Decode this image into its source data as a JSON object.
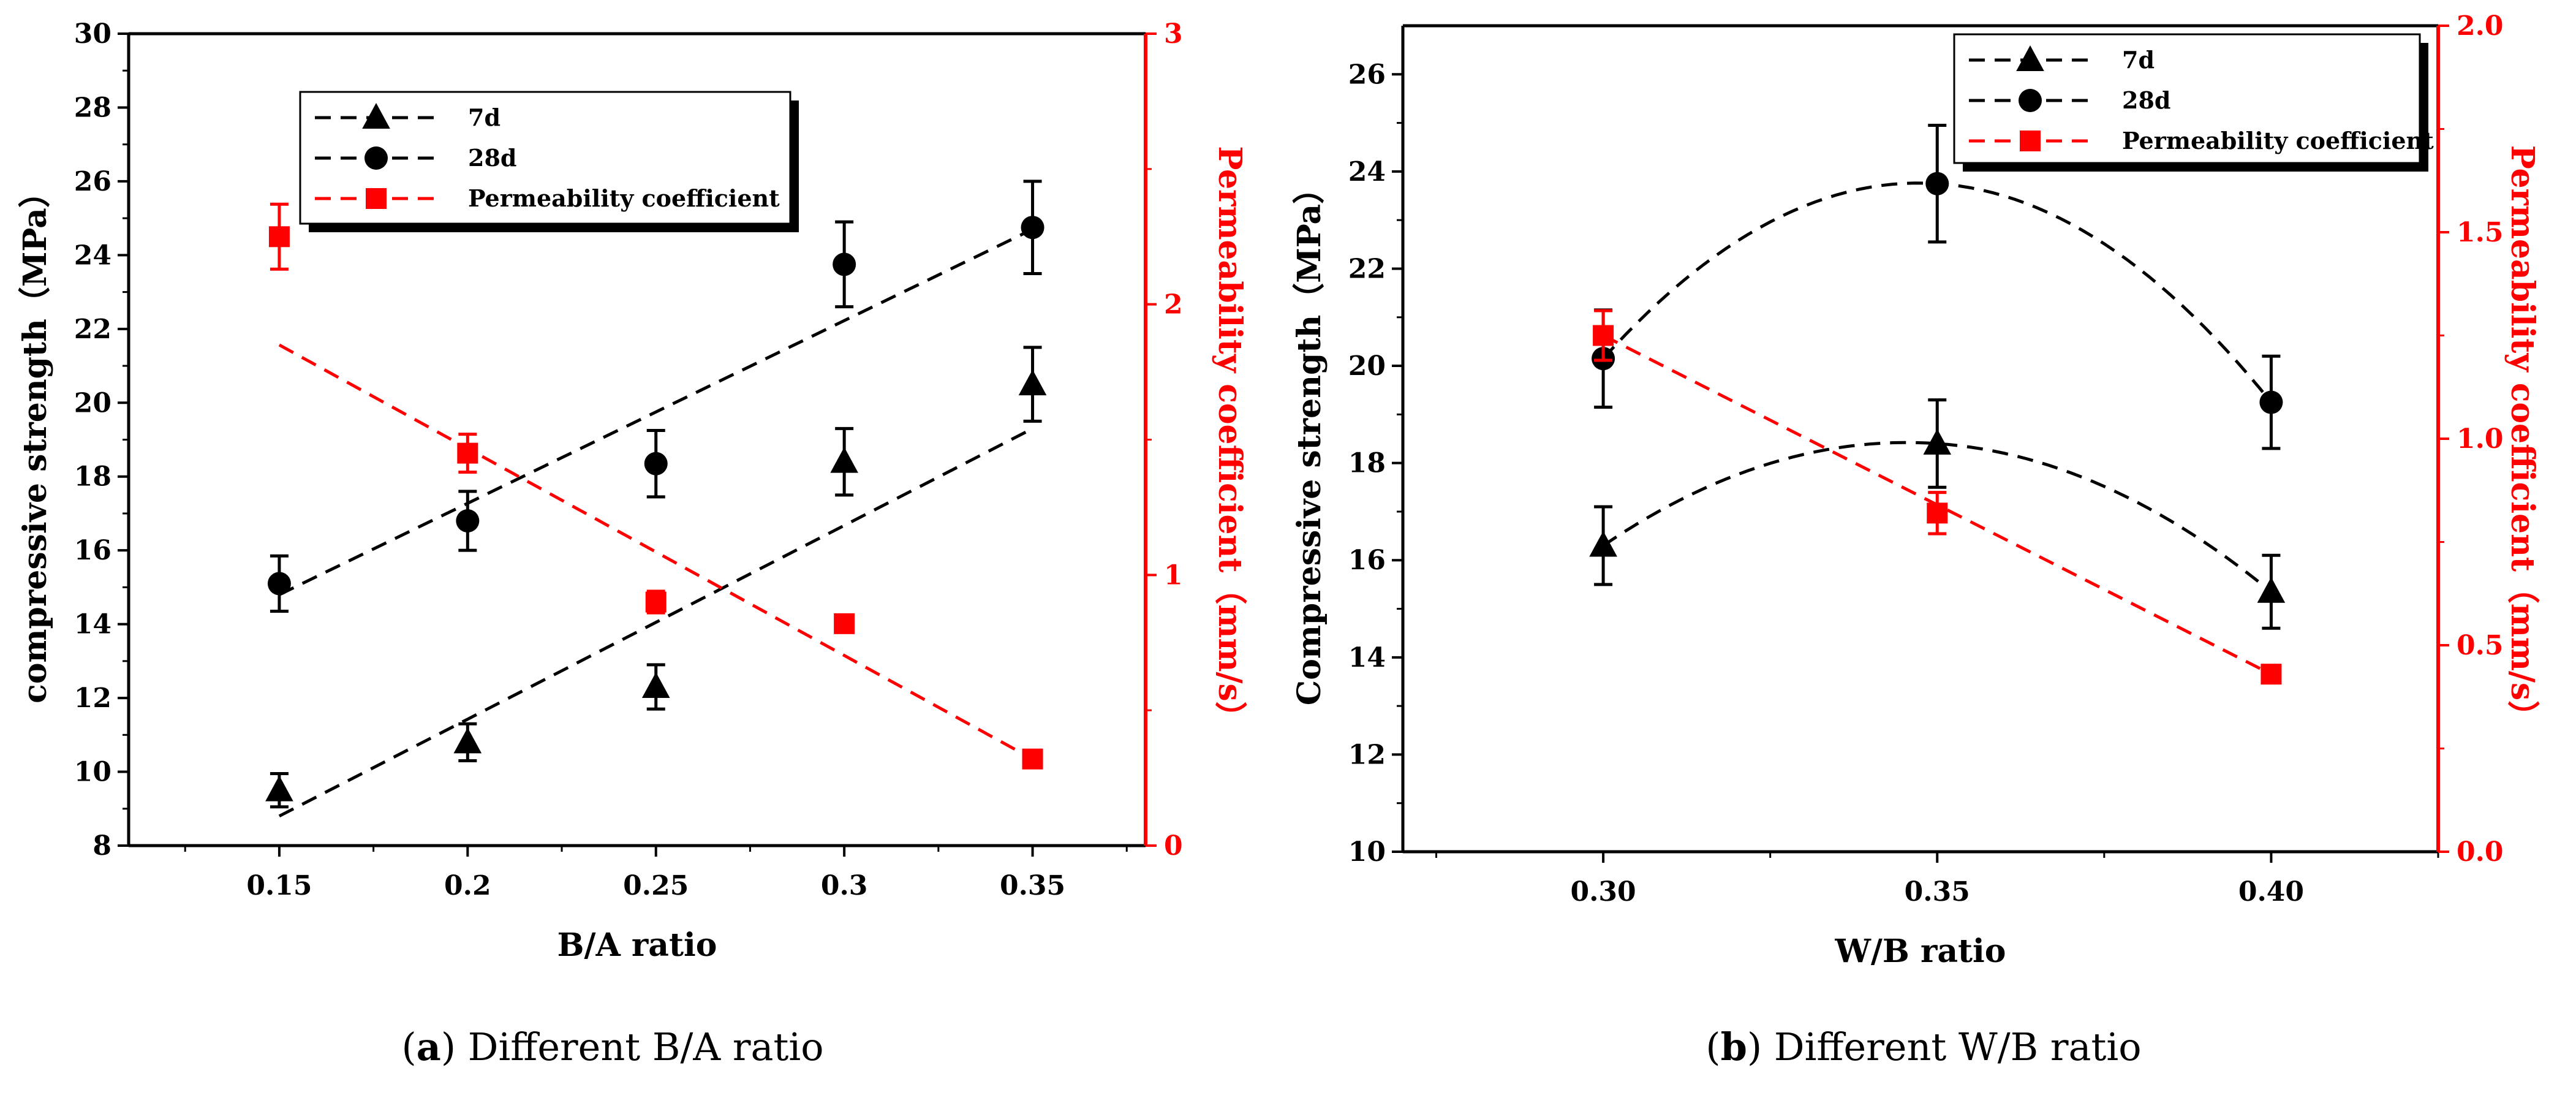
{
  "chart_data": [
    {
      "type": "scatter",
      "panel": "a",
      "caption_letter": "a",
      "caption_text": " Different B/A ratio",
      "xlabel": "B/A ratio",
      "ylabel_left": "compressive strength（MPa）",
      "ylabel_right": "Permeability coefficient（mm/s）",
      "xlim": [
        0.11,
        0.38
      ],
      "ylim_left": [
        8,
        30
      ],
      "ylim_right": [
        0,
        3
      ],
      "x_ticks": [
        0.15,
        0.2,
        0.25,
        0.3,
        0.35
      ],
      "x_tick_labels": [
        "0.15",
        "0.2",
        "0.25",
        "0.3",
        "0.35"
      ],
      "y_left_ticks": [
        8,
        10,
        12,
        14,
        16,
        18,
        20,
        22,
        24,
        26,
        28,
        30
      ],
      "y_left_tick_labels": [
        "8",
        "10",
        "12",
        "14",
        "16",
        "18",
        "20",
        "22",
        "24",
        "26",
        "28",
        "30"
      ],
      "y_right_ticks": [
        0,
        1,
        2,
        3
      ],
      "y_right_tick_labels": [
        "0",
        "1",
        "2",
        "3"
      ],
      "legend_position": "top-center",
      "series": [
        {
          "name": "7d",
          "axis": "left",
          "marker": "triangle",
          "color": "#000000",
          "x": [
            0.15,
            0.2,
            0.25,
            0.3,
            0.35
          ],
          "y": [
            9.5,
            10.8,
            12.3,
            18.4,
            20.5
          ],
          "err": [
            0.45,
            0.5,
            0.6,
            0.9,
            1.0
          ],
          "fit": {
            "kind": "linear",
            "x": [
              0.15,
              0.35
            ],
            "y": [
              8.8,
              19.3
            ]
          }
        },
        {
          "name": "28d",
          "axis": "left",
          "marker": "circle",
          "color": "#000000",
          "x": [
            0.15,
            0.2,
            0.25,
            0.3,
            0.35
          ],
          "y": [
            15.1,
            16.8,
            18.35,
            23.75,
            24.75
          ],
          "err": [
            0.75,
            0.8,
            0.9,
            1.15,
            1.25
          ],
          "fit": {
            "kind": "linear",
            "x": [
              0.15,
              0.35
            ],
            "y": [
              14.8,
              24.7
            ]
          }
        },
        {
          "name": "Permeability coefficient",
          "axis": "right",
          "marker": "square",
          "color": "#ff0000",
          "x": [
            0.15,
            0.2,
            0.25,
            0.3,
            0.35
          ],
          "y": [
            2.25,
            1.45,
            0.9,
            0.82,
            0.32
          ],
          "err": [
            0.12,
            0.07,
            0.04,
            0.03,
            0.02
          ],
          "fit": {
            "kind": "linear",
            "x": [
              0.15,
              0.35
            ],
            "y": [
              1.85,
              0.32
            ]
          }
        }
      ]
    },
    {
      "type": "scatter",
      "panel": "b",
      "caption_letter": "b",
      "caption_text": " Different W/B ratio",
      "xlabel": "W/B ratio",
      "ylabel_left": "Compressive strength（MPa）",
      "ylabel_right": "Permeability coefficient（mm/s）",
      "xlim": [
        0.27,
        0.425
      ],
      "ylim_left": [
        10,
        27
      ],
      "ylim_right": [
        0,
        2
      ],
      "x_ticks": [
        0.3,
        0.35,
        0.4
      ],
      "x_tick_labels": [
        "0.30",
        "0.35",
        "0.40"
      ],
      "y_left_ticks": [
        10,
        12,
        14,
        16,
        18,
        20,
        22,
        24,
        26
      ],
      "y_left_tick_labels": [
        "10",
        "12",
        "14",
        "16",
        "18",
        "20",
        "22",
        "24",
        "26"
      ],
      "y_right_ticks": [
        0,
        0.5,
        1,
        1.5,
        2
      ],
      "y_right_tick_labels": [
        "0.0",
        "0.5",
        "1.0",
        "1.5",
        "2.0"
      ],
      "legend_position": "top-right",
      "series": [
        {
          "name": "7d",
          "axis": "left",
          "marker": "triangle",
          "color": "#000000",
          "x": [
            0.3,
            0.35,
            0.4
          ],
          "y": [
            16.3,
            18.4,
            15.35
          ],
          "err": [
            0.8,
            0.9,
            0.75
          ],
          "fit": {
            "kind": "quadratic"
          }
        },
        {
          "name": "28d",
          "axis": "left",
          "marker": "circle",
          "color": "#000000",
          "x": [
            0.3,
            0.35,
            0.4
          ],
          "y": [
            20.15,
            23.75,
            19.25
          ],
          "err": [
            1.0,
            1.2,
            0.95
          ],
          "fit": {
            "kind": "quadratic"
          }
        },
        {
          "name": "Permeability coefficient",
          "axis": "right",
          "marker": "square",
          "color": "#ff0000",
          "x": [
            0.3,
            0.35,
            0.4
          ],
          "y": [
            1.25,
            0.82,
            0.43
          ],
          "err": [
            0.06,
            0.05,
            0.02
          ],
          "fit": {
            "kind": "linear",
            "x": [
              0.3,
              0.4
            ],
            "y": [
              1.25,
              0.43
            ]
          }
        }
      ]
    }
  ]
}
